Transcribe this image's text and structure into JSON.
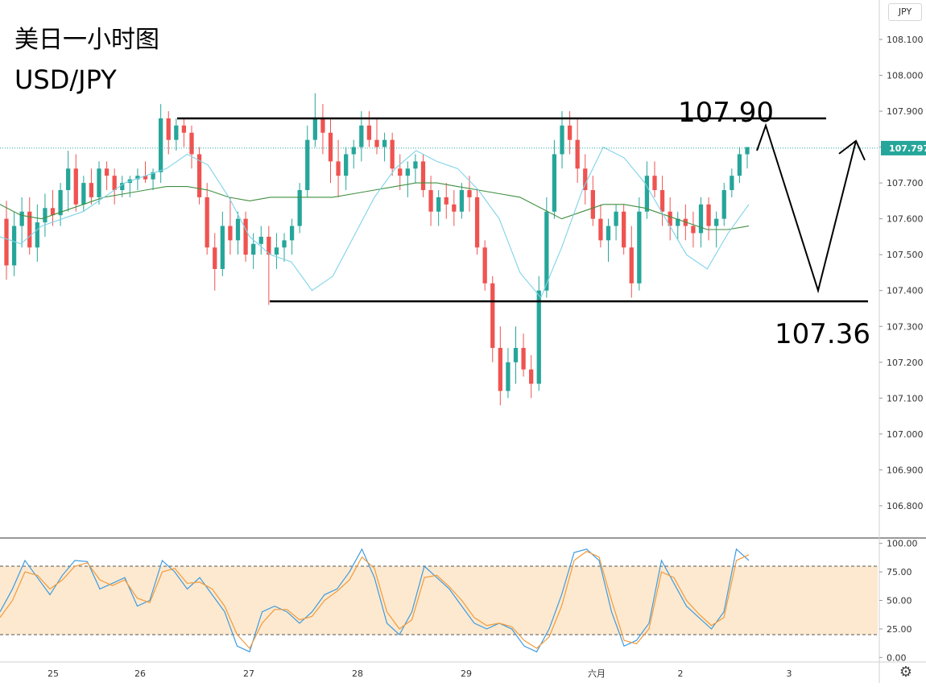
{
  "header": {
    "title_cn": "美日一小时图",
    "title_en": "USD/JPY",
    "symbol": "JPY"
  },
  "annotations": {
    "resistance_label": "107.90",
    "support_label": "107.36"
  },
  "chart_data": [
    {
      "type": "candlestick",
      "title": "美日一小时图",
      "subtitle": "USD/JPY",
      "y_axis_position": "right",
      "ylim": [
        106.71,
        108.21
      ],
      "yticks": [
        "108.100",
        "108.000",
        "107.900",
        "107.800",
        "107.700",
        "107.600",
        "107.500",
        "107.400",
        "107.300",
        "107.200",
        "107.100",
        "107.000",
        "106.900",
        "106.800"
      ],
      "xticks": [
        "25",
        "26",
        "27",
        "28",
        "29",
        "六月",
        "2",
        "3"
      ],
      "current_price": "107.797",
      "horizontal_levels": [
        {
          "label": "107.90",
          "value": 107.88
        },
        {
          "label": "107.36",
          "value": 107.37
        }
      ],
      "projection_path": [
        [
          107.79,
          107.86
        ],
        [
          107.4,
          107.86
        ]
      ],
      "colors": {
        "up": "#26a69a",
        "down": "#ef5350",
        "ma_fast": "#7fd3e8",
        "ma_slow": "#3f8f3f",
        "price_line": "#26a69a"
      },
      "ma_fast": [
        107.55,
        107.53,
        107.58,
        107.6,
        107.62,
        107.66,
        107.7,
        107.72,
        107.74,
        107.78,
        107.75,
        107.66,
        107.55,
        107.5,
        107.48,
        107.4,
        107.44,
        107.55,
        107.66,
        107.74,
        107.79,
        107.76,
        107.74,
        107.68,
        107.6,
        107.45,
        107.38,
        107.52,
        107.68,
        107.8,
        107.77,
        107.7,
        107.6,
        107.5,
        107.46,
        107.56,
        107.64
      ],
      "ma_slow": [
        107.64,
        107.61,
        107.6,
        107.62,
        107.64,
        107.66,
        107.67,
        107.68,
        107.69,
        107.69,
        107.68,
        107.66,
        107.65,
        107.66,
        107.66,
        107.66,
        107.66,
        107.67,
        107.68,
        107.69,
        107.7,
        107.7,
        107.69,
        107.68,
        107.67,
        107.66,
        107.63,
        107.6,
        107.62,
        107.64,
        107.64,
        107.63,
        107.61,
        107.59,
        107.57,
        107.57,
        107.58
      ],
      "ohlc": [
        [
          107.6,
          107.65,
          107.43,
          107.47
        ],
        [
          107.47,
          107.62,
          107.44,
          107.58
        ],
        [
          107.58,
          107.66,
          107.52,
          107.62
        ],
        [
          107.62,
          107.66,
          107.5,
          107.52
        ],
        [
          107.52,
          107.64,
          107.48,
          107.59
        ],
        [
          107.59,
          107.67,
          107.55,
          107.63
        ],
        [
          107.63,
          107.68,
          107.58,
          107.61
        ],
        [
          107.61,
          107.7,
          107.58,
          107.68
        ],
        [
          107.68,
          107.79,
          107.62,
          107.74
        ],
        [
          107.74,
          107.78,
          107.62,
          107.64
        ],
        [
          107.64,
          107.72,
          107.62,
          107.7
        ],
        [
          107.7,
          107.74,
          107.64,
          107.66
        ],
        [
          107.66,
          107.76,
          107.64,
          107.74
        ],
        [
          107.74,
          107.76,
          107.68,
          107.72
        ],
        [
          107.72,
          107.74,
          107.64,
          107.68
        ],
        [
          107.68,
          107.72,
          107.66,
          107.7
        ],
        [
          107.7,
          107.72,
          107.66,
          107.71
        ],
        [
          107.71,
          107.74,
          107.68,
          107.72
        ],
        [
          107.72,
          107.76,
          107.7,
          107.71
        ],
        [
          107.71,
          107.74,
          107.68,
          107.73
        ],
        [
          107.73,
          107.92,
          107.7,
          107.88
        ],
        [
          107.88,
          107.9,
          107.78,
          107.82
        ],
        [
          107.82,
          107.88,
          107.79,
          107.86
        ],
        [
          107.86,
          107.88,
          107.8,
          107.84
        ],
        [
          107.84,
          107.86,
          107.74,
          107.78
        ],
        [
          107.78,
          107.8,
          107.64,
          107.66
        ],
        [
          107.66,
          107.7,
          107.5,
          107.52
        ],
        [
          107.52,
          107.56,
          107.4,
          107.46
        ],
        [
          107.46,
          107.62,
          107.44,
          107.58
        ],
        [
          107.58,
          107.66,
          107.5,
          107.54
        ],
        [
          107.54,
          107.62,
          107.5,
          107.6
        ],
        [
          107.6,
          107.62,
          107.48,
          107.5
        ],
        [
          107.5,
          107.56,
          107.46,
          107.53
        ],
        [
          107.53,
          107.58,
          107.5,
          107.55
        ],
        [
          107.55,
          107.58,
          107.36,
          107.5
        ],
        [
          107.5,
          107.56,
          107.46,
          107.52
        ],
        [
          107.52,
          107.56,
          107.48,
          107.54
        ],
        [
          107.54,
          107.6,
          107.5,
          107.58
        ],
        [
          107.58,
          107.7,
          107.56,
          107.68
        ],
        [
          107.68,
          107.86,
          107.66,
          107.82
        ],
        [
          107.82,
          107.95,
          107.8,
          107.88
        ],
        [
          107.88,
          107.92,
          107.78,
          107.84
        ],
        [
          107.84,
          107.88,
          107.7,
          107.76
        ],
        [
          107.76,
          107.82,
          107.66,
          107.72
        ],
        [
          107.72,
          107.8,
          107.68,
          107.78
        ],
        [
          107.78,
          107.82,
          107.74,
          107.8
        ],
        [
          107.8,
          107.9,
          107.76,
          107.86
        ],
        [
          107.86,
          107.9,
          107.8,
          107.82
        ],
        [
          107.82,
          107.88,
          107.78,
          107.8
        ],
        [
          107.8,
          107.84,
          107.76,
          107.82
        ],
        [
          107.82,
          107.84,
          107.72,
          107.74
        ],
        [
          107.74,
          107.78,
          107.68,
          107.72
        ],
        [
          107.72,
          107.76,
          107.66,
          107.74
        ],
        [
          107.74,
          107.78,
          107.7,
          107.76
        ],
        [
          107.76,
          107.78,
          107.66,
          107.68
        ],
        [
          107.68,
          107.72,
          107.58,
          107.62
        ],
        [
          107.62,
          107.68,
          107.58,
          107.66
        ],
        [
          107.66,
          107.7,
          107.6,
          107.64
        ],
        [
          107.64,
          107.68,
          107.58,
          107.62
        ],
        [
          107.62,
          107.7,
          107.6,
          107.68
        ],
        [
          107.68,
          107.72,
          107.62,
          107.66
        ],
        [
          107.66,
          107.68,
          107.5,
          107.52
        ],
        [
          107.52,
          107.54,
          107.4,
          107.42
        ],
        [
          107.42,
          107.44,
          107.2,
          107.24
        ],
        [
          107.24,
          107.3,
          107.08,
          107.12
        ],
        [
          107.12,
          107.24,
          107.1,
          107.2
        ],
        [
          107.2,
          107.3,
          107.14,
          107.24
        ],
        [
          107.24,
          107.28,
          107.16,
          107.18
        ],
        [
          107.18,
          107.22,
          107.1,
          107.14
        ],
        [
          107.14,
          107.44,
          107.12,
          107.4
        ],
        [
          107.4,
          107.66,
          107.38,
          107.62
        ],
        [
          107.62,
          107.82,
          107.6,
          107.78
        ],
        [
          107.78,
          107.9,
          107.74,
          107.86
        ],
        [
          107.86,
          107.9,
          107.78,
          107.82
        ],
        [
          107.82,
          107.88,
          107.7,
          107.74
        ],
        [
          107.74,
          107.78,
          107.64,
          107.68
        ],
        [
          107.68,
          107.72,
          107.58,
          107.6
        ],
        [
          107.6,
          107.64,
          107.52,
          107.54
        ],
        [
          107.54,
          107.6,
          107.48,
          107.58
        ],
        [
          107.58,
          107.64,
          107.54,
          107.62
        ],
        [
          107.62,
          107.64,
          107.5,
          107.52
        ],
        [
          107.52,
          107.58,
          107.38,
          107.42
        ],
        [
          107.42,
          107.66,
          107.4,
          107.62
        ],
        [
          107.62,
          107.76,
          107.6,
          107.72
        ],
        [
          107.72,
          107.76,
          107.66,
          107.68
        ],
        [
          107.68,
          107.72,
          107.58,
          107.62
        ],
        [
          107.62,
          107.66,
          107.54,
          107.58
        ],
        [
          107.58,
          107.62,
          107.54,
          107.6
        ],
        [
          107.6,
          107.64,
          107.54,
          107.58
        ],
        [
          107.58,
          107.62,
          107.52,
          107.56
        ],
        [
          107.56,
          107.66,
          107.52,
          107.64
        ],
        [
          107.64,
          107.66,
          107.54,
          107.58
        ],
        [
          107.58,
          107.62,
          107.52,
          107.6
        ],
        [
          107.6,
          107.7,
          107.58,
          107.68
        ],
        [
          107.68,
          107.74,
          107.66,
          107.72
        ],
        [
          107.72,
          107.8,
          107.7,
          107.78
        ],
        [
          107.78,
          107.8,
          107.74,
          107.8
        ]
      ]
    },
    {
      "type": "line",
      "yticks": [
        "100.00",
        "75.00",
        "50.00",
        "25.00",
        "0.00"
      ],
      "ylim": [
        -4,
        104
      ],
      "band": [
        20,
        80
      ],
      "series": [
        {
          "name": "",
          "color": "#3d9be0",
          "values": [
            40,
            60,
            85,
            70,
            55,
            72,
            85,
            84,
            60,
            65,
            70,
            45,
            50,
            85,
            75,
            60,
            70,
            55,
            40,
            10,
            5,
            40,
            45,
            40,
            30,
            40,
            55,
            60,
            75,
            95,
            70,
            30,
            20,
            40,
            80,
            70,
            60,
            45,
            30,
            25,
            30,
            25,
            10,
            5,
            25,
            55,
            92,
            95,
            85,
            40,
            10,
            15,
            30,
            85,
            65,
            45,
            35,
            25,
            40,
            95,
            85
          ]
        },
        {
          "name": "",
          "color": "#f39a3a",
          "values": [
            35,
            50,
            75,
            72,
            60,
            68,
            80,
            83,
            68,
            63,
            68,
            52,
            48,
            75,
            78,
            65,
            66,
            60,
            45,
            20,
            8,
            30,
            42,
            42,
            33,
            36,
            50,
            58,
            68,
            88,
            78,
            40,
            25,
            33,
            70,
            72,
            62,
            50,
            35,
            28,
            30,
            27,
            15,
            8,
            18,
            45,
            85,
            93,
            88,
            50,
            15,
            12,
            25,
            75,
            70,
            50,
            38,
            28,
            35,
            85,
            90
          ]
        }
      ]
    }
  ]
}
